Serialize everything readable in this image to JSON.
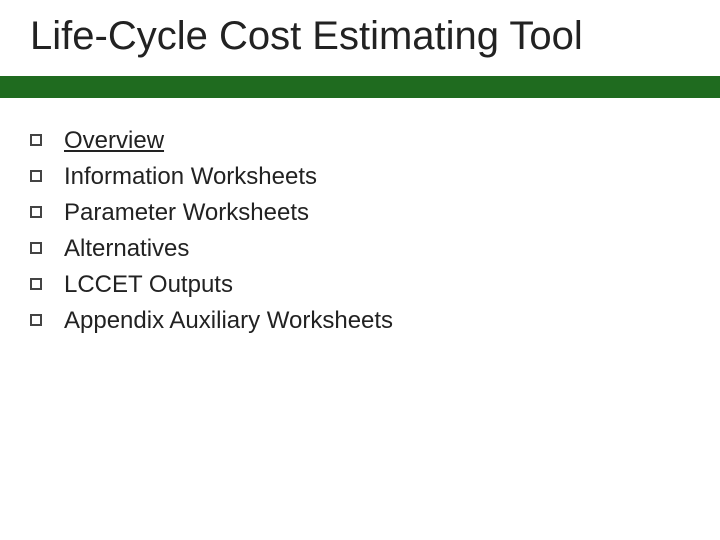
{
  "title": "Life-Cycle Cost Estimating Tool",
  "title_fontsize": 40,
  "title_color": "#222222",
  "accent_color": "#1f6b1f",
  "background_color": "#ffffff",
  "bullet_marker_border_color": "#444444",
  "bullet_fontsize": 24,
  "bullet_text_color": "#222222",
  "bullets": [
    {
      "text": "Overview",
      "underlined": true
    },
    {
      "text": "Information Worksheets",
      "underlined": false
    },
    {
      "text": "Parameter Worksheets",
      "underlined": false
    },
    {
      "text": "Alternatives",
      "underlined": false
    },
    {
      "text": "LCCET Outputs",
      "underlined": false
    },
    {
      "text": "Appendix Auxiliary Worksheets",
      "underlined": false
    }
  ]
}
